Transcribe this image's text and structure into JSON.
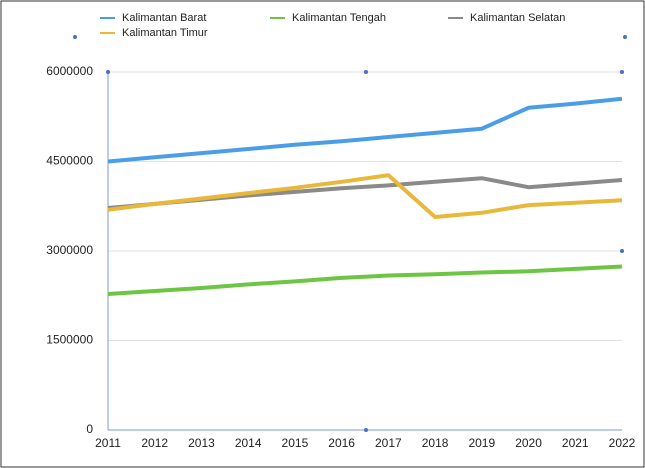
{
  "chart_data": {
    "type": "line",
    "categories": [
      "2011",
      "2012",
      "2013",
      "2014",
      "2015",
      "2016",
      "2017",
      "2018",
      "2019",
      "2020",
      "2021",
      "2022"
    ],
    "series": [
      {
        "name": "Kalimantan Barat",
        "color": "#4a9ee8",
        "values": [
          4500000,
          4570000,
          4640000,
          4710000,
          4780000,
          4840000,
          4910000,
          4980000,
          5050000,
          5400000,
          5470000,
          5550000
        ]
      },
      {
        "name": "Kalimantan Tengah",
        "color": "#6cc644",
        "values": [
          2280000,
          2330000,
          2380000,
          2440000,
          2490000,
          2550000,
          2590000,
          2610000,
          2640000,
          2660000,
          2700000,
          2740000
        ]
      },
      {
        "name": "Kalimantan Selatan",
        "color": "#8a8a8a",
        "values": [
          3720000,
          3790000,
          3860000,
          3930000,
          3990000,
          4050000,
          4100000,
          4160000,
          4220000,
          4070000,
          4130000,
          4190000
        ]
      },
      {
        "name": "Kalimantan Timur",
        "color": "#e8b83a",
        "values": [
          3690000,
          3790000,
          3880000,
          3970000,
          4060000,
          4160000,
          4270000,
          3570000,
          3640000,
          3770000,
          3810000,
          3850000
        ]
      }
    ],
    "ylim": [
      0,
      6000000
    ],
    "yticks": [
      0,
      1500000,
      3000000,
      4500000,
      6000000
    ],
    "grid": true
  }
}
